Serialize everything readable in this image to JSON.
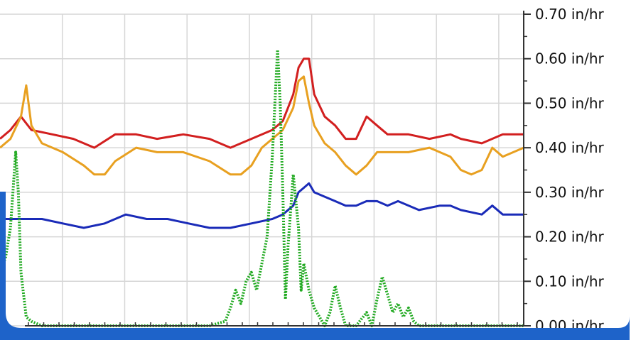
{
  "chart_data": {
    "type": "line",
    "title": "",
    "xlabel": "",
    "ylabel": "",
    "ylim": [
      0,
      0.7
    ],
    "y_ticks": [
      "0.00 in/hr",
      "0.10 in/hr",
      "0.20 in/hr",
      "0.30 in/hr",
      "0.40 in/hr",
      "0.50 in/hr",
      "0.60 in/hr",
      "0.70 in/hr"
    ],
    "y_tick_values": [
      0,
      0.1,
      0.2,
      0.3,
      0.4,
      0.5,
      0.6,
      0.7
    ],
    "y_axis_position": "right",
    "grid": true,
    "legend": "none",
    "x_range": [
      0,
      100
    ],
    "series": [
      {
        "color": "#d21f1f",
        "style": "solid",
        "points": [
          [
            0,
            0.42
          ],
          [
            2,
            0.44
          ],
          [
            4,
            0.47
          ],
          [
            6,
            0.44
          ],
          [
            10,
            0.43
          ],
          [
            14,
            0.42
          ],
          [
            18,
            0.4
          ],
          [
            22,
            0.43
          ],
          [
            26,
            0.43
          ],
          [
            30,
            0.42
          ],
          [
            35,
            0.43
          ],
          [
            40,
            0.42
          ],
          [
            44,
            0.4
          ],
          [
            48,
            0.42
          ],
          [
            52,
            0.44
          ],
          [
            54,
            0.46
          ],
          [
            56,
            0.52
          ],
          [
            57,
            0.58
          ],
          [
            58,
            0.6
          ],
          [
            59,
            0.6
          ],
          [
            60,
            0.52
          ],
          [
            62,
            0.47
          ],
          [
            64,
            0.45
          ],
          [
            66,
            0.42
          ],
          [
            68,
            0.42
          ],
          [
            70,
            0.47
          ],
          [
            72,
            0.45
          ],
          [
            74,
            0.43
          ],
          [
            78,
            0.43
          ],
          [
            82,
            0.42
          ],
          [
            86,
            0.43
          ],
          [
            88,
            0.42
          ],
          [
            92,
            0.41
          ],
          [
            96,
            0.43
          ],
          [
            100,
            0.43
          ]
        ]
      },
      {
        "color": "#e8a020",
        "style": "solid",
        "points": [
          [
            0,
            0.4
          ],
          [
            2,
            0.42
          ],
          [
            4,
            0.47
          ],
          [
            5,
            0.54
          ],
          [
            6,
            0.45
          ],
          [
            8,
            0.41
          ],
          [
            12,
            0.39
          ],
          [
            16,
            0.36
          ],
          [
            18,
            0.34
          ],
          [
            20,
            0.34
          ],
          [
            22,
            0.37
          ],
          [
            26,
            0.4
          ],
          [
            30,
            0.39
          ],
          [
            35,
            0.39
          ],
          [
            40,
            0.37
          ],
          [
            44,
            0.34
          ],
          [
            46,
            0.34
          ],
          [
            48,
            0.36
          ],
          [
            50,
            0.4
          ],
          [
            52,
            0.42
          ],
          [
            54,
            0.44
          ],
          [
            56,
            0.49
          ],
          [
            57,
            0.55
          ],
          [
            58,
            0.56
          ],
          [
            59,
            0.5
          ],
          [
            60,
            0.45
          ],
          [
            62,
            0.41
          ],
          [
            64,
            0.39
          ],
          [
            66,
            0.36
          ],
          [
            68,
            0.34
          ],
          [
            70,
            0.36
          ],
          [
            72,
            0.39
          ],
          [
            74,
            0.39
          ],
          [
            78,
            0.39
          ],
          [
            82,
            0.4
          ],
          [
            86,
            0.38
          ],
          [
            88,
            0.35
          ],
          [
            90,
            0.34
          ],
          [
            92,
            0.35
          ],
          [
            94,
            0.4
          ],
          [
            96,
            0.38
          ],
          [
            100,
            0.4
          ]
        ]
      },
      {
        "color": "#1a2bb8",
        "style": "solid",
        "points": [
          [
            0,
            0.24
          ],
          [
            4,
            0.24
          ],
          [
            8,
            0.24
          ],
          [
            12,
            0.23
          ],
          [
            16,
            0.22
          ],
          [
            20,
            0.23
          ],
          [
            24,
            0.25
          ],
          [
            28,
            0.24
          ],
          [
            32,
            0.24
          ],
          [
            36,
            0.23
          ],
          [
            40,
            0.22
          ],
          [
            44,
            0.22
          ],
          [
            48,
            0.23
          ],
          [
            52,
            0.24
          ],
          [
            54,
            0.25
          ],
          [
            56,
            0.27
          ],
          [
            57,
            0.3
          ],
          [
            58,
            0.31
          ],
          [
            59,
            0.32
          ],
          [
            60,
            0.3
          ],
          [
            62,
            0.29
          ],
          [
            64,
            0.28
          ],
          [
            66,
            0.27
          ],
          [
            68,
            0.27
          ],
          [
            70,
            0.28
          ],
          [
            72,
            0.28
          ],
          [
            74,
            0.27
          ],
          [
            76,
            0.28
          ],
          [
            80,
            0.26
          ],
          [
            84,
            0.27
          ],
          [
            86,
            0.27
          ],
          [
            88,
            0.26
          ],
          [
            92,
            0.25
          ],
          [
            94,
            0.27
          ],
          [
            96,
            0.25
          ],
          [
            100,
            0.25
          ]
        ]
      },
      {
        "color": "#22aa22",
        "style": "dotted",
        "points": [
          [
            0,
            0.13
          ],
          [
            1,
            0.15
          ],
          [
            2,
            0.22
          ],
          [
            3,
            0.39
          ],
          [
            3.5,
            0.3
          ],
          [
            4,
            0.12
          ],
          [
            5,
            0.02
          ],
          [
            6,
            0.01
          ],
          [
            8,
            0.0
          ],
          [
            20,
            0.0
          ],
          [
            40,
            0.0
          ],
          [
            43,
            0.01
          ],
          [
            44,
            0.04
          ],
          [
            45,
            0.08
          ],
          [
            46,
            0.05
          ],
          [
            47,
            0.1
          ],
          [
            48,
            0.12
          ],
          [
            49,
            0.08
          ],
          [
            50,
            0.14
          ],
          [
            51,
            0.2
          ],
          [
            52,
            0.38
          ],
          [
            53,
            0.62
          ],
          [
            53.5,
            0.5
          ],
          [
            54,
            0.3
          ],
          [
            54.5,
            0.06
          ],
          [
            55,
            0.18
          ],
          [
            56,
            0.34
          ],
          [
            57,
            0.22
          ],
          [
            57.5,
            0.08
          ],
          [
            58,
            0.14
          ],
          [
            59,
            0.08
          ],
          [
            60,
            0.04
          ],
          [
            61,
            0.02
          ],
          [
            62,
            0.0
          ],
          [
            63,
            0.03
          ],
          [
            64,
            0.09
          ],
          [
            65,
            0.04
          ],
          [
            66,
            0.0
          ],
          [
            68,
            0.0
          ],
          [
            70,
            0.03
          ],
          [
            71,
            0.0
          ],
          [
            72,
            0.06
          ],
          [
            73,
            0.11
          ],
          [
            74,
            0.07
          ],
          [
            75,
            0.03
          ],
          [
            76,
            0.05
          ],
          [
            77,
            0.02
          ],
          [
            78,
            0.04
          ],
          [
            79,
            0.01
          ],
          [
            80,
            0.0
          ],
          [
            100,
            0.0
          ]
        ]
      }
    ]
  }
}
